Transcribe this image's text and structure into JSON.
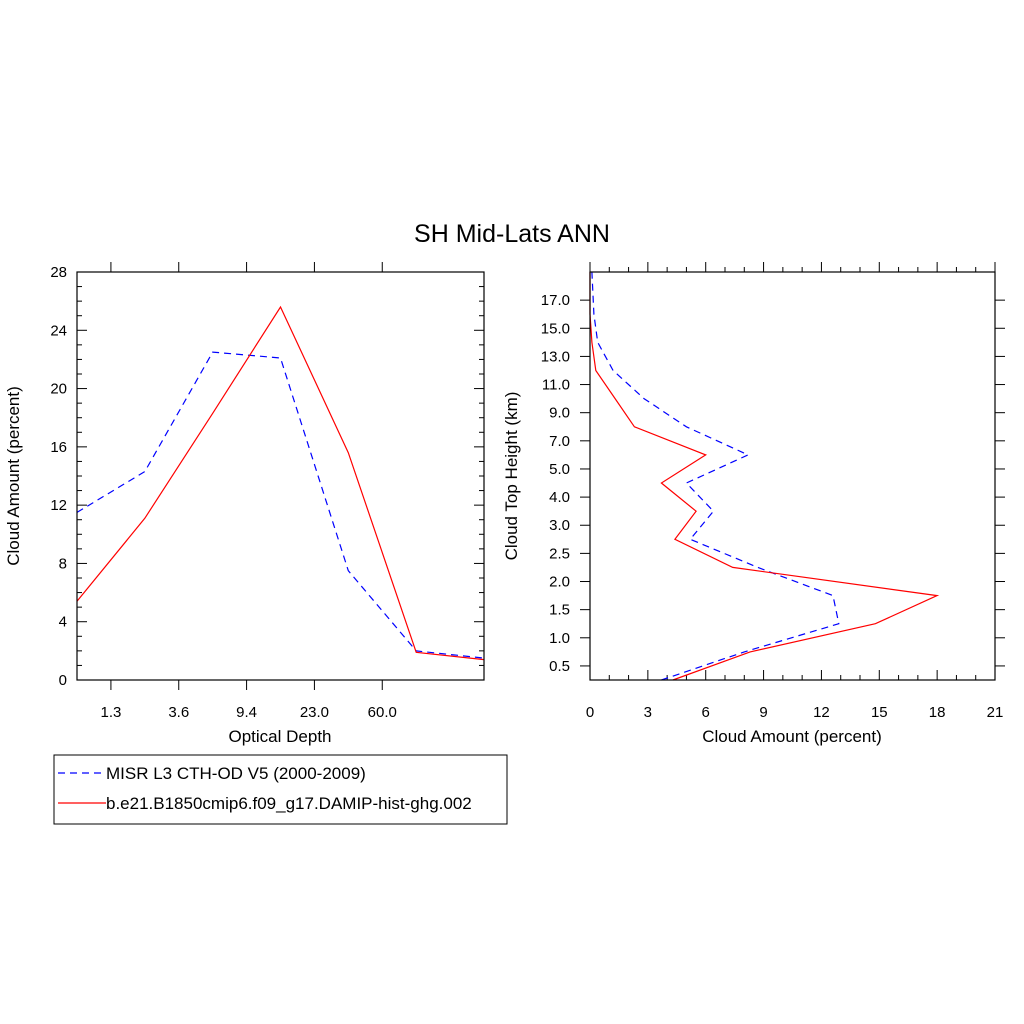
{
  "title": "SH Mid-Lats ANN",
  "colors": {
    "obs": "#0000ff",
    "model": "#ff0000",
    "axis": "#000000"
  },
  "legend": {
    "placement": "bottom-left",
    "entries": [
      {
        "label": "MISR L3 CTH-OD V5 (2000-2009)",
        "color": "#0000ff",
        "style": "dashed"
      },
      {
        "label": "b.e21.B1850cmip6.f09_g17.DAMIP-hist-ghg.002",
        "color": "#ff0000",
        "style": "solid"
      }
    ]
  },
  "chart_data": [
    {
      "type": "line",
      "xlabel": "Optical Depth",
      "ylabel": "Cloud Amount (percent)",
      "x_tick_labels": [
        "1.3",
        "3.6",
        "9.4",
        "23.0",
        "60.0"
      ],
      "x_bins": [
        0,
        1,
        2,
        3,
        4,
        5,
        6
      ],
      "ylim": [
        0,
        28
      ],
      "y_ticks": [
        0,
        4,
        8,
        12,
        16,
        20,
        24,
        28
      ],
      "series": [
        {
          "name": "MISR L3 CTH-OD V5 (2000-2009)",
          "style": "dashed",
          "color": "#0000ff",
          "values": [
            11.5,
            14.3,
            22.5,
            22.1,
            7.5,
            2.0,
            1.5
          ]
        },
        {
          "name": "b.e21.B1850cmip6.f09_g17.DAMIP-hist-ghg.002",
          "style": "solid",
          "color": "#ff0000",
          "values": [
            5.4,
            11.1,
            18.3,
            25.6,
            15.6,
            1.9,
            1.4
          ]
        }
      ]
    },
    {
      "type": "line",
      "orientation": "horizontal",
      "xlabel": "Cloud Amount (percent)",
      "ylabel": "Cloud Top Height (km)",
      "xlim": [
        0,
        21
      ],
      "x_ticks": [
        0,
        3,
        6,
        9,
        12,
        15,
        18,
        21
      ],
      "y_tick_labels": [
        "0.5",
        "1.0",
        "1.5",
        "2.0",
        "2.5",
        "3.0",
        "4.0",
        "5.0",
        "7.0",
        "9.0",
        "11.0",
        "13.0",
        "15.0",
        "17.0"
      ],
      "series": [
        {
          "name": "MISR L3 CTH-OD V5 (2000-2009)",
          "style": "dashed",
          "color": "#0000ff",
          "x": [
            3.7,
            8.0,
            12.9,
            12.6,
            8.7,
            5.2,
            6.4,
            5.0,
            8.2,
            5.0,
            2.8,
            1.2,
            0.4,
            0.2,
            0.1
          ],
          "y": [
            0.25,
            0.75,
            1.25,
            1.75,
            2.25,
            2.75,
            3.5,
            4.5,
            6.0,
            8.0,
            10.0,
            12.0,
            14.0,
            16.0,
            18.0
          ]
        },
        {
          "name": "b.e21.B1850cmip6.f09_g17.DAMIP-hist-ghg.002",
          "style": "solid",
          "color": "#ff0000",
          "x": [
            4.3,
            8.3,
            14.8,
            18.0,
            7.4,
            4.4,
            5.5,
            3.7,
            6.0,
            2.3,
            1.3,
            0.3,
            0.1,
            0.0,
            0.0
          ],
          "y": [
            0.25,
            0.75,
            1.25,
            1.75,
            2.25,
            2.75,
            3.5,
            4.5,
            6.0,
            8.0,
            10.0,
            12.0,
            14.0,
            16.0,
            18.0
          ]
        }
      ]
    }
  ]
}
